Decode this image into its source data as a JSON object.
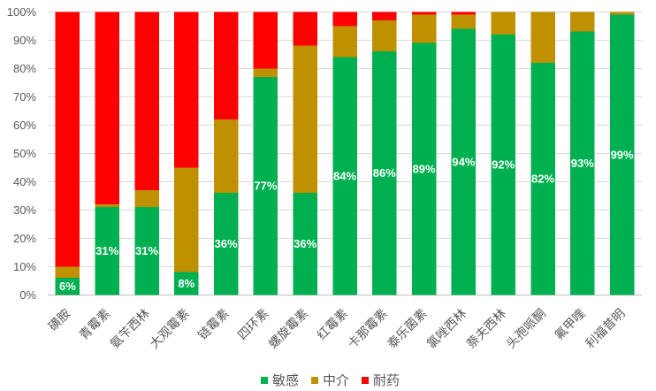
{
  "chart_data": {
    "type": "bar",
    "stacked": true,
    "title": "",
    "xlabel": "",
    "ylabel": "",
    "ylim": [
      0,
      100
    ],
    "grid": true,
    "legend_position": "bottom",
    "categories": [
      "磺胺",
      "青霉素",
      "氨苄西林",
      "大观霉素",
      "链霉素",
      "四环素",
      "螺旋霉素",
      "红霉素",
      "卡那霉素",
      "泰乐菌素",
      "氯唑西林",
      "萘夫西林",
      "头孢哌酮",
      "氟甲喹",
      "利福昔明"
    ],
    "series": [
      {
        "name": "敏感",
        "color": "#00B050",
        "values": [
          6,
          31,
          31,
          8,
          36,
          77,
          36,
          84,
          86,
          89,
          94,
          92,
          82,
          93,
          99
        ]
      },
      {
        "name": "中介",
        "color": "#BF9000",
        "values": [
          4,
          1,
          6,
          37,
          26,
          3,
          52,
          11,
          11,
          10,
          5,
          8,
          18,
          7,
          1
        ]
      },
      {
        "name": "耐药",
        "color": "#FF0000",
        "values": [
          90,
          68,
          63,
          55,
          38,
          20,
          12,
          5,
          3,
          1,
          1,
          0,
          0,
          0,
          0
        ]
      }
    ],
    "data_label_series": 0,
    "data_labels": [
      "6%",
      "31%",
      "31%",
      "8%",
      "36%",
      "77%",
      "36%",
      "84%",
      "86%",
      "89%",
      "94%",
      "92%",
      "82%",
      "93%",
      "99%"
    ],
    "y_tick_values": [
      0,
      10,
      20,
      30,
      40,
      50,
      60,
      70,
      80,
      90,
      100
    ],
    "y_tick_labels": [
      "0%",
      "10%",
      "20%",
      "30%",
      "40%",
      "50%",
      "60%",
      "70%",
      "80%",
      "90%",
      "100%"
    ]
  }
}
